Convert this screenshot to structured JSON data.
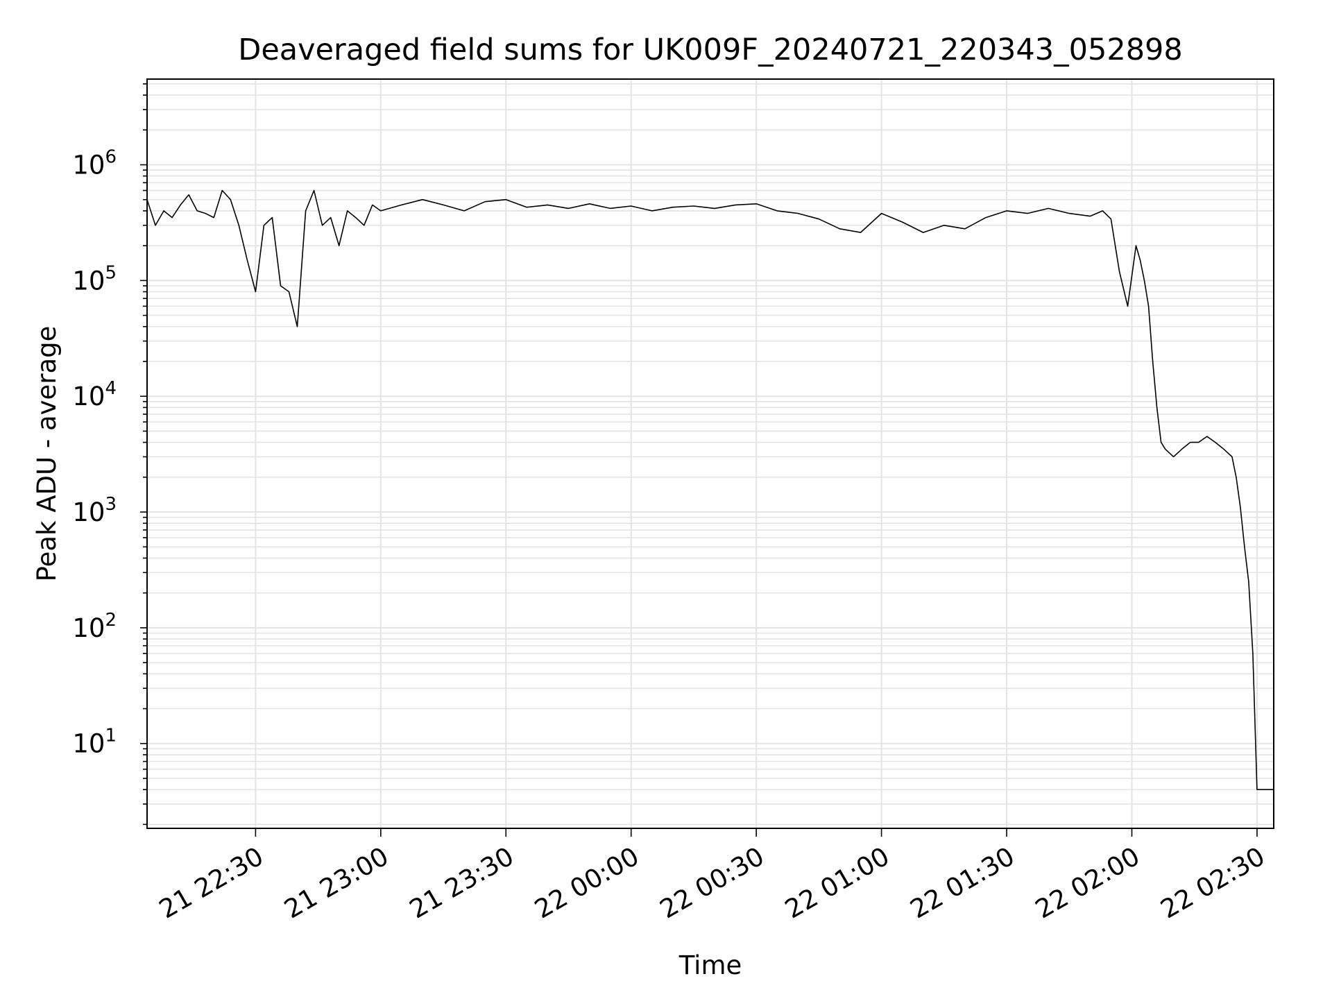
{
  "chart_data": {
    "type": "line",
    "title": "Deaveraged field sums for UK009F_20240721_220343_052898",
    "xlabel": "Time",
    "ylabel": "Peak ADU - average",
    "yscale": "log",
    "grid": true,
    "line_color": "#000000",
    "grid_color": "#e3e3e3",
    "xlim": [
      "2024-07-21 22:04:00",
      "2024-07-22 02:34:00"
    ],
    "ylim": [
      1.85,
      5500000
    ],
    "x_ticks": [
      {
        "value": "2024-07-21 22:30",
        "label": "21 22:30"
      },
      {
        "value": "2024-07-21 23:00",
        "label": "21 23:00"
      },
      {
        "value": "2024-07-21 23:30",
        "label": "21 23:30"
      },
      {
        "value": "2024-07-22 00:00",
        "label": "22 00:00"
      },
      {
        "value": "2024-07-22 00:30",
        "label": "22 00:30"
      },
      {
        "value": "2024-07-22 01:00",
        "label": "22 01:00"
      },
      {
        "value": "2024-07-22 01:30",
        "label": "22 01:30"
      },
      {
        "value": "2024-07-22 02:00",
        "label": "22 02:00"
      },
      {
        "value": "2024-07-22 02:30",
        "label": "22 02:30"
      }
    ],
    "y_ticks": [
      {
        "value": 10,
        "base": "10",
        "exp": "1"
      },
      {
        "value": 100,
        "base": "10",
        "exp": "2"
      },
      {
        "value": 1000,
        "base": "10",
        "exp": "3"
      },
      {
        "value": 10000,
        "base": "10",
        "exp": "4"
      },
      {
        "value": 100000,
        "base": "10",
        "exp": "5"
      },
      {
        "value": 1000000,
        "base": "10",
        "exp": "6"
      }
    ],
    "series": [
      {
        "x": [
          "2024-07-21 22:04",
          "2024-07-21 22:06",
          "2024-07-21 22:08",
          "2024-07-21 22:10",
          "2024-07-21 22:12",
          "2024-07-21 22:14",
          "2024-07-21 22:16",
          "2024-07-21 22:18",
          "2024-07-21 22:20",
          "2024-07-21 22:22",
          "2024-07-21 22:24",
          "2024-07-21 22:26",
          "2024-07-21 22:28",
          "2024-07-21 22:30",
          "2024-07-21 22:32",
          "2024-07-21 22:34",
          "2024-07-21 22:36",
          "2024-07-21 22:38",
          "2024-07-21 22:40",
          "2024-07-21 22:42",
          "2024-07-21 22:44",
          "2024-07-21 22:46",
          "2024-07-21 22:48",
          "2024-07-21 22:50",
          "2024-07-21 22:52",
          "2024-07-21 22:54",
          "2024-07-21 22:56",
          "2024-07-21 22:58",
          "2024-07-21 23:00",
          "2024-07-21 23:05",
          "2024-07-21 23:10",
          "2024-07-21 23:15",
          "2024-07-21 23:20",
          "2024-07-21 23:25",
          "2024-07-21 23:30",
          "2024-07-21 23:35",
          "2024-07-21 23:40",
          "2024-07-21 23:45",
          "2024-07-21 23:50",
          "2024-07-21 23:55",
          "2024-07-22 00:00",
          "2024-07-22 00:05",
          "2024-07-22 00:10",
          "2024-07-22 00:15",
          "2024-07-22 00:20",
          "2024-07-22 00:25",
          "2024-07-22 00:30",
          "2024-07-22 00:35",
          "2024-07-22 00:40",
          "2024-07-22 00:45",
          "2024-07-22 00:50",
          "2024-07-22 00:55",
          "2024-07-22 01:00",
          "2024-07-22 01:05",
          "2024-07-22 01:10",
          "2024-07-22 01:15",
          "2024-07-22 01:20",
          "2024-07-22 01:25",
          "2024-07-22 01:30",
          "2024-07-22 01:35",
          "2024-07-22 01:40",
          "2024-07-22 01:45",
          "2024-07-22 01:50",
          "2024-07-22 01:53",
          "2024-07-22 01:55",
          "2024-07-22 01:57",
          "2024-07-22 01:59",
          "2024-07-22 02:01",
          "2024-07-22 02:02",
          "2024-07-22 02:03",
          "2024-07-22 02:04",
          "2024-07-22 02:05",
          "2024-07-22 02:06",
          "2024-07-22 02:07",
          "2024-07-22 02:08",
          "2024-07-22 02:10",
          "2024-07-22 02:12",
          "2024-07-22 02:14",
          "2024-07-22 02:16",
          "2024-07-22 02:18",
          "2024-07-22 02:20",
          "2024-07-22 02:22",
          "2024-07-22 02:24",
          "2024-07-22 02:25",
          "2024-07-22 02:26",
          "2024-07-22 02:27",
          "2024-07-22 02:28",
          "2024-07-22 02:29",
          "2024-07-22 02:30",
          "2024-07-22 02:31",
          "2024-07-22 02:33",
          "2024-07-22 02:34"
        ],
        "y": [
          500000,
          300000,
          400000,
          350000,
          450000,
          550000,
          400000,
          380000,
          350000,
          600000,
          500000,
          300000,
          150000,
          80000,
          300000,
          350000,
          90000,
          80000,
          40000,
          400000,
          600000,
          300000,
          350000,
          200000,
          400000,
          350000,
          300000,
          450000,
          400000,
          450000,
          500000,
          450000,
          400000,
          480000,
          500000,
          430000,
          450000,
          420000,
          460000,
          420000,
          440000,
          400000,
          430000,
          440000,
          420000,
          450000,
          460000,
          400000,
          380000,
          340000,
          280000,
          260000,
          380000,
          320000,
          260000,
          300000,
          280000,
          350000,
          400000,
          380000,
          420000,
          380000,
          360000,
          400000,
          340000,
          120000,
          60000,
          200000,
          150000,
          100000,
          60000,
          20000,
          8000,
          4000,
          3500,
          3000,
          3500,
          4000,
          4000,
          4500,
          4000,
          3500,
          3000,
          2000,
          1100,
          500,
          250,
          60,
          4,
          4,
          4,
          4
        ]
      }
    ]
  }
}
